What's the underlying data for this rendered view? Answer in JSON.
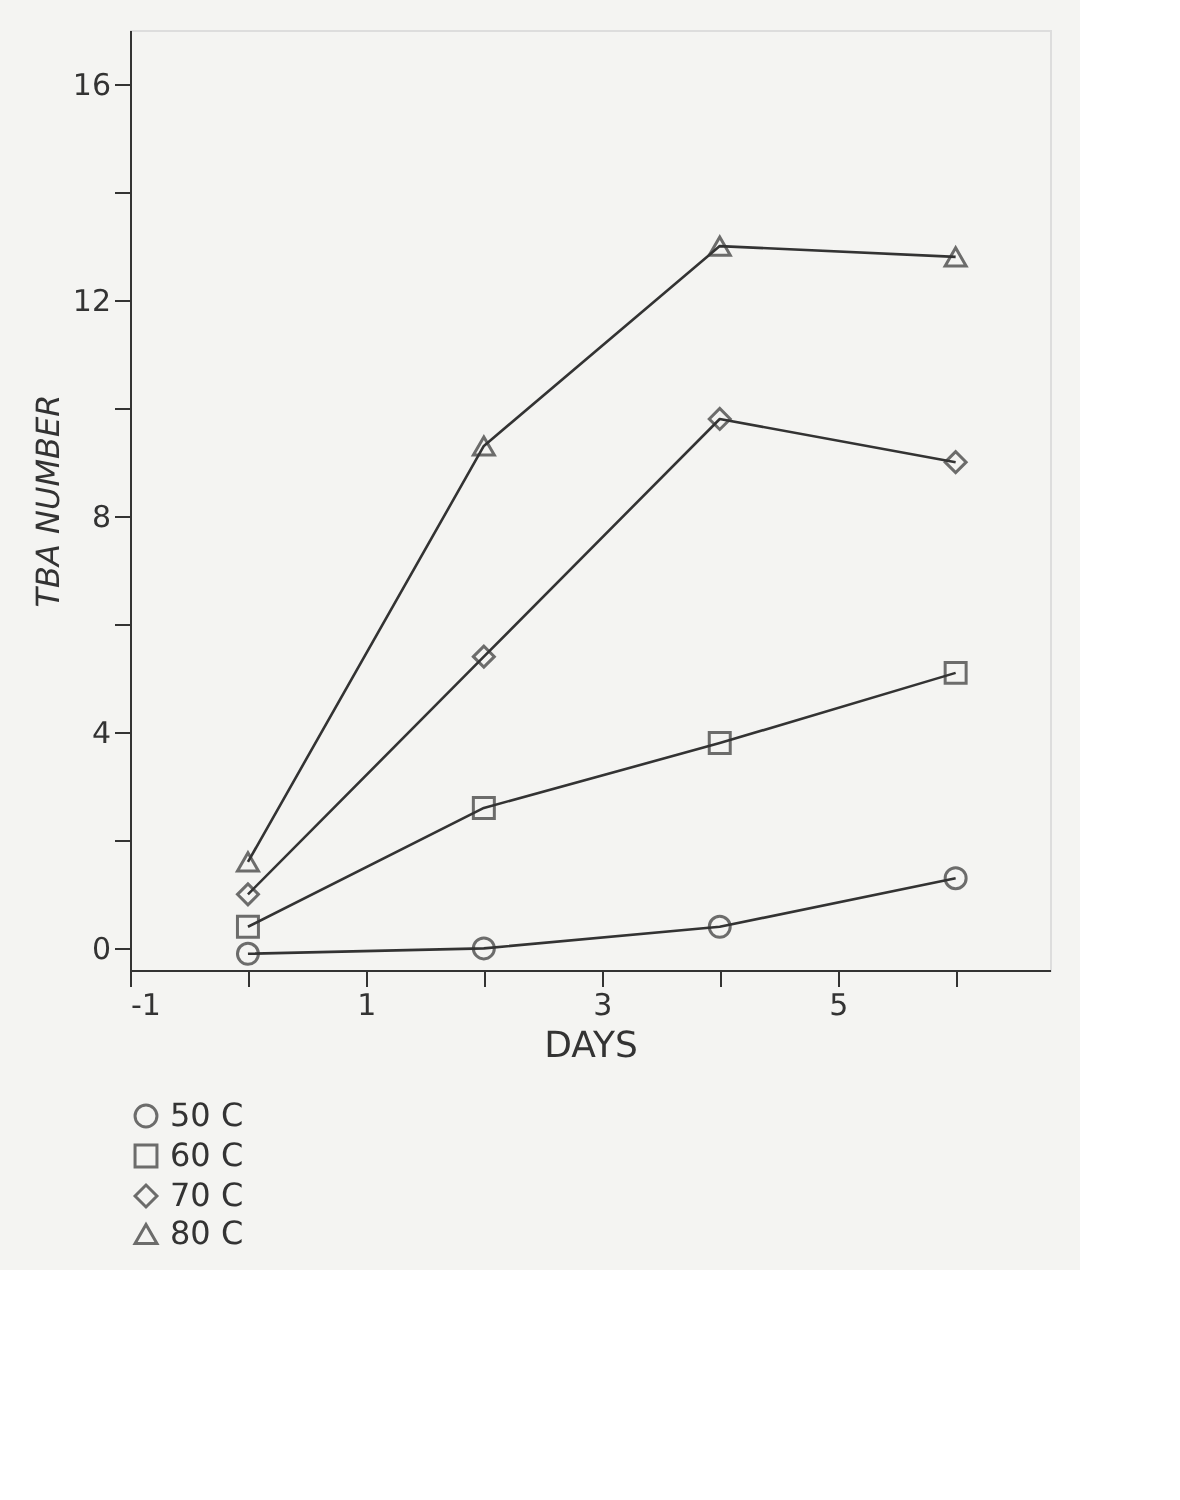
{
  "chart_data": {
    "type": "line",
    "xlabel": "DAYS",
    "ylabel": "TBA NUMBER",
    "x": [
      0,
      2,
      4,
      6
    ],
    "series": [
      {
        "name": "50 C",
        "color": "#333333",
        "marker": "circle",
        "values": [
          -0.1,
          0.0,
          0.4,
          1.3
        ]
      },
      {
        "name": "60 C",
        "color": "#333333",
        "marker": "square",
        "values": [
          0.4,
          2.6,
          3.8,
          5.1
        ]
      },
      {
        "name": "70 C",
        "color": "#333333",
        "marker": "diamond",
        "values": [
          1.0,
          5.4,
          9.8,
          9.0
        ]
      },
      {
        "name": "80 C",
        "color": "#333333",
        "marker": "triangle",
        "values": [
          1.6,
          9.3,
          13.0,
          12.8
        ]
      }
    ],
    "xlim": [
      -1,
      6.8
    ],
    "ylim": [
      -0.4,
      17
    ],
    "xticks": [
      -1,
      {
        "value": 0,
        "label": null
      },
      1,
      {
        "value": 2,
        "label": null
      },
      3,
      {
        "value": 4,
        "label": null
      },
      5,
      {
        "value": 6,
        "label": null
      }
    ],
    "yticks": [
      0,
      {
        "value": 2,
        "label": null
      },
      4,
      {
        "value": 6,
        "label": null
      },
      8,
      {
        "value": 10,
        "label": null
      },
      12,
      {
        "value": 14,
        "label": null
      },
      16
    ],
    "grid": false,
    "legend": "bottom",
    "line_style": "solid"
  }
}
